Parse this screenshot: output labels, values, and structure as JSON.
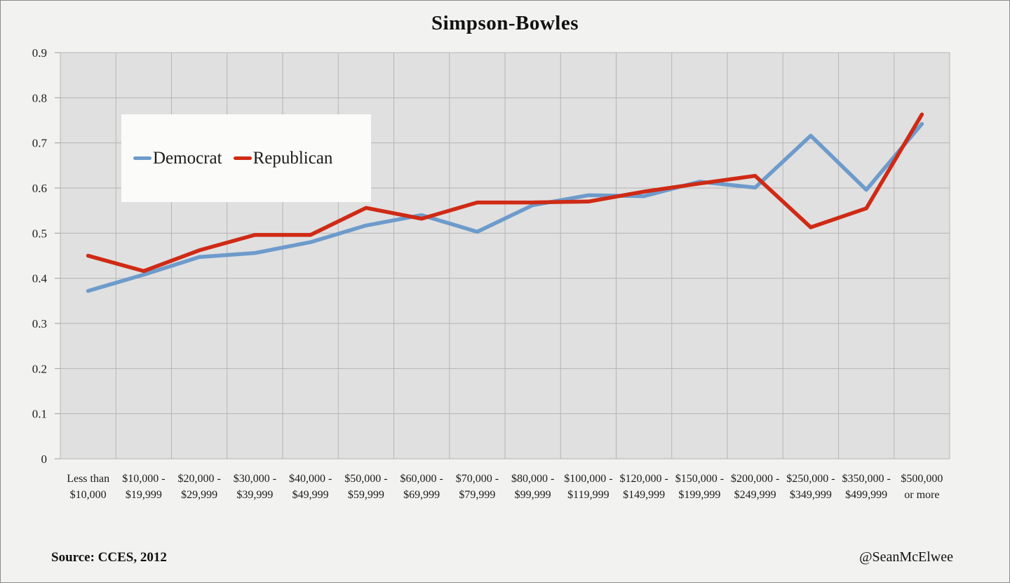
{
  "title": "Simpson-Bowles",
  "source": "Source: CCES, 2012",
  "credit": "@SeanMcElwee",
  "legend": [
    {
      "label": "Democrat",
      "color": "#6D9BCB"
    },
    {
      "label": "Republican",
      "color": "#CF2A15"
    }
  ],
  "colors": {
    "outer_bg": "#f2f2f0",
    "plot_bg": "#e0e0e0",
    "grid": "#b5b5b5",
    "tick": "#9a9a9a",
    "text": "#1c1c1c",
    "frame_border": "#8a8a8a"
  },
  "chart_data": {
    "type": "line",
    "title": "Simpson-Bowles",
    "categories": [
      "Less than $10,000",
      "$10,000 - $19,999",
      "$20,000 - $29,999",
      "$30,000 - $39,999",
      "$40,000 - $49,999",
      "$50,000 - $59,999",
      "$60,000 - $69,999",
      "$70,000 - $79,999",
      "$80,000 - $99,999",
      "$100,000 - $119,999",
      "$120,000 - $149,999",
      "$150,000 - $199,999",
      "$200,000 - $249,999",
      "$250,000 - $349,999",
      "$350,000 - $499,999",
      "$500,000 or more"
    ],
    "category_label_lines": [
      [
        "Less than",
        "$10,000"
      ],
      [
        "$10,000 -",
        "$19,999"
      ],
      [
        "$20,000 -",
        "$29,999"
      ],
      [
        "$30,000 -",
        "$39,999"
      ],
      [
        "$40,000 -",
        "$49,999"
      ],
      [
        "$50,000 -",
        "$59,999"
      ],
      [
        "$60,000 -",
        "$69,999"
      ],
      [
        "$70,000 -",
        "$79,999"
      ],
      [
        "$80,000 -",
        "$99,999"
      ],
      [
        "$100,000 -",
        "$119,999"
      ],
      [
        "$120,000 -",
        "$149,999"
      ],
      [
        "$150,000 -",
        "$199,999"
      ],
      [
        "$200,000 -",
        "$249,999"
      ],
      [
        "$250,000 -",
        "$349,999"
      ],
      [
        "$350,000 -",
        "$499,999"
      ],
      [
        "$500,000",
        "or more"
      ]
    ],
    "series": [
      {
        "name": "Democrat",
        "color": "#6D9BCB",
        "values": [
          0.372,
          0.408,
          0.447,
          0.456,
          0.48,
          0.517,
          0.54,
          0.503,
          0.562,
          0.584,
          0.582,
          0.614,
          0.601,
          0.716,
          0.596,
          0.742
        ]
      },
      {
        "name": "Republican",
        "color": "#CF2A15",
        "values": [
          0.45,
          0.416,
          0.462,
          0.496,
          0.496,
          0.556,
          0.532,
          0.568,
          0.568,
          0.57,
          0.592,
          0.61,
          0.627,
          0.513,
          0.555,
          0.763
        ]
      }
    ],
    "ylim": [
      0,
      0.9
    ],
    "yticks": [
      "0",
      "0.1",
      "0.2",
      "0.3",
      "0.4",
      "0.5",
      "0.6",
      "0.7",
      "0.8",
      "0.9"
    ],
    "grid": true,
    "legend_position": "upper-left-inside",
    "xlabel": "",
    "ylabel": ""
  }
}
